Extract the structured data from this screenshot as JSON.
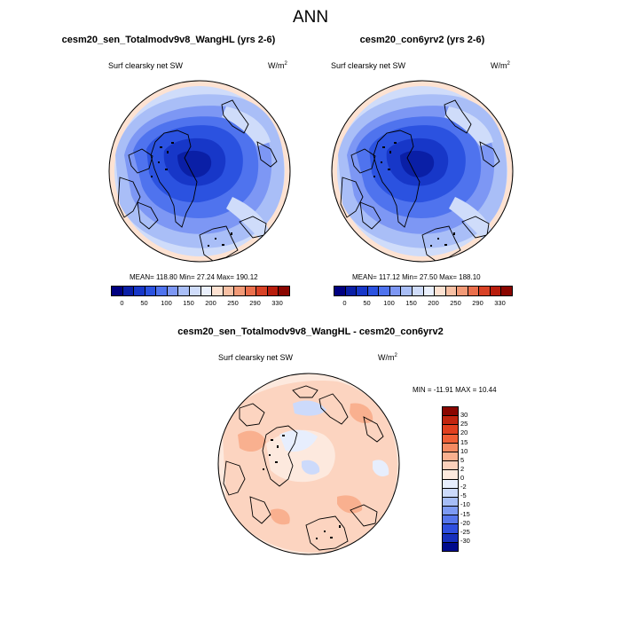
{
  "figure_title": "ANN",
  "units_label": "W/m",
  "units_exp": "2",
  "panels": [
    {
      "title": "cesm20_sen_Totalmodv9v8_WangHL (yrs 2-6)",
      "variable": "Surf clearsky net SW",
      "stats": "MEAN= 118.80  Min=  27.24  Max= 190.12"
    },
    {
      "title": "cesm20_con6yrv2 (yrs 2-6)",
      "variable": "Surf clearsky net SW",
      "stats": "MEAN= 117.12  Min=  27.50  Max= 188.10"
    },
    {
      "title": "cesm20_sen_Totalmodv9v8_WangHL - cesm20_con6yrv2",
      "variable": "Surf clearsky net SW",
      "stats": "MIN = -11.91 MAX =  10.44"
    }
  ],
  "colorbar_top": {
    "labels": [
      "0",
      "50",
      "100",
      "150",
      "200",
      "250",
      "290",
      "330"
    ],
    "colors": [
      "#000080",
      "#0a1fa6",
      "#1737c8",
      "#2b52e0",
      "#4f73ee",
      "#7d97f4",
      "#a9bef7",
      "#cfdcfa",
      "#eaf0fd",
      "#fde2d2",
      "#f7c0a4",
      "#f29a77",
      "#ea6f4c",
      "#d84226",
      "#b81d0c",
      "#8a0600"
    ]
  },
  "colorbar_diff": {
    "labels": [
      "30",
      "25",
      "20",
      "15",
      "10",
      "5",
      "2",
      "0",
      "-2",
      "-5",
      "-10",
      "-15",
      "-20",
      "-25",
      "-30"
    ],
    "colors": [
      "#8a0600",
      "#c1250f",
      "#e0401f",
      "#f05f36",
      "#f58a62",
      "#f9b08f",
      "#fbd0bb",
      "#fde9de",
      "#e7eefd",
      "#ccdafb",
      "#a6bdf7",
      "#7d9af3",
      "#5676ec",
      "#2f4fdf",
      "#1730bd",
      "#000b8c"
    ]
  }
}
